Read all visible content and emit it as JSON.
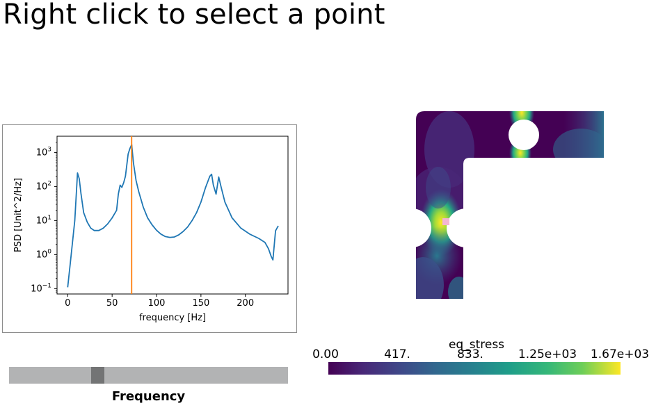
{
  "title": "Right click to select a point",
  "slider": {
    "label": "Frequency",
    "value_fraction": 0.31
  },
  "colorbar": {
    "title": "eq_stress",
    "ticks": [
      "0.00",
      "417.",
      "833.",
      "1.25e+03",
      "1.67e+03"
    ]
  },
  "chart_data": {
    "type": "line",
    "xlabel": "frequency [Hz]",
    "ylabel": "PSD [Unit^2/Hz]",
    "yscale": "log",
    "xlim": [
      -12,
      248
    ],
    "ylim": [
      0.07,
      3000
    ],
    "xticks": [
      "0",
      "50",
      "100",
      "150",
      "200"
    ],
    "xtick_values": [
      0,
      50,
      100,
      150,
      200
    ],
    "ytick_exponents": [
      -1,
      0,
      1,
      2,
      3
    ],
    "series": [
      {
        "color": "#1f77b4",
        "x": [
          0,
          3,
          8,
          11,
          13,
          15,
          18,
          22,
          26,
          30,
          35,
          40,
          45,
          50,
          55,
          57,
          59,
          61,
          63,
          65,
          68,
          70,
          72,
          74,
          77,
          80,
          85,
          90,
          95,
          100,
          105,
          110,
          115,
          120,
          125,
          130,
          135,
          140,
          145,
          150,
          155,
          160,
          162,
          164,
          167,
          170,
          173,
          177,
          185,
          195,
          205,
          215,
          222,
          226,
          229,
          231,
          234,
          237
        ],
        "y": [
          0.11,
          0.6,
          10,
          250,
          170,
          60,
          17,
          9,
          6,
          5.1,
          5.1,
          6,
          8,
          12,
          20,
          60,
          110,
          95,
          130,
          200,
          900,
          1300,
          1700,
          500,
          150,
          70,
          25,
          12,
          7.5,
          5.2,
          4,
          3.4,
          3.2,
          3.3,
          3.8,
          4.8,
          6.5,
          10,
          17,
          35,
          90,
          200,
          230,
          110,
          60,
          190,
          90,
          35,
          12,
          6,
          4,
          3,
          2.3,
          1.5,
          0.9,
          0.7,
          5,
          7
        ]
      }
    ],
    "vline": {
      "x": 72,
      "color": "#ff7f0e"
    }
  }
}
